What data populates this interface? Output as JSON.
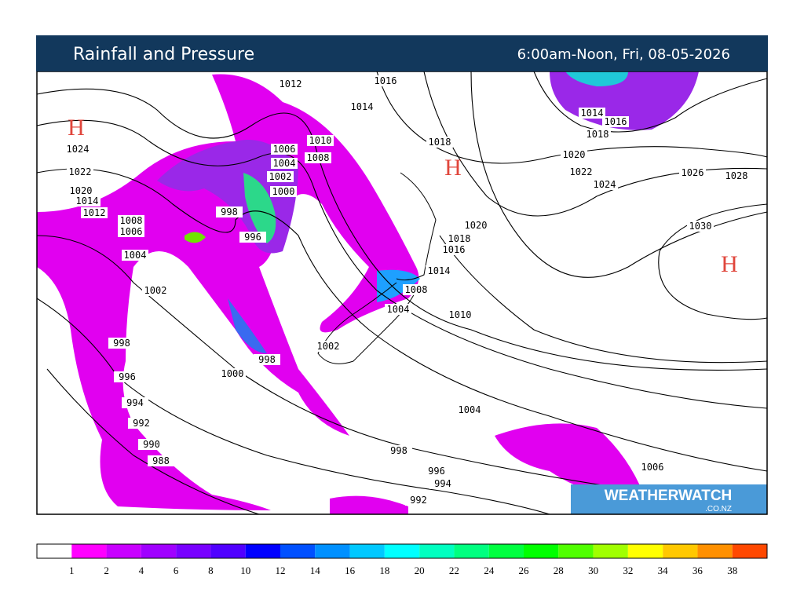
{
  "header": {
    "title": "Rainfall and Pressure",
    "period": "6:00am-Noon, Fri, 08-05-2026"
  },
  "isobar_labels": [
    1012,
    1016,
    1014,
    1018,
    1010,
    1006,
    1008,
    1004,
    1002,
    1000,
    998,
    996,
    1024,
    1022,
    1020,
    1014,
    1012,
    1008,
    1006,
    1004,
    1002,
    998,
    996,
    994,
    992,
    990,
    988,
    1000,
    998,
    1002,
    1004,
    1008,
    1014,
    1010,
    1016,
    1018,
    1020,
    1020,
    1022,
    1024,
    1026,
    1028,
    1030,
    1018,
    1016,
    1014,
    1004,
    998,
    996,
    994,
    992,
    1006
  ],
  "high_markers": [
    "H",
    "H",
    "H"
  ],
  "legend": [
    1,
    2,
    4,
    6,
    8,
    10,
    12,
    14,
    16,
    18,
    20,
    22,
    24,
    26,
    28,
    30,
    32,
    34,
    36,
    38
  ],
  "brand": {
    "name": "WEATHERWATCH",
    "domain": ".CO.NZ"
  }
}
